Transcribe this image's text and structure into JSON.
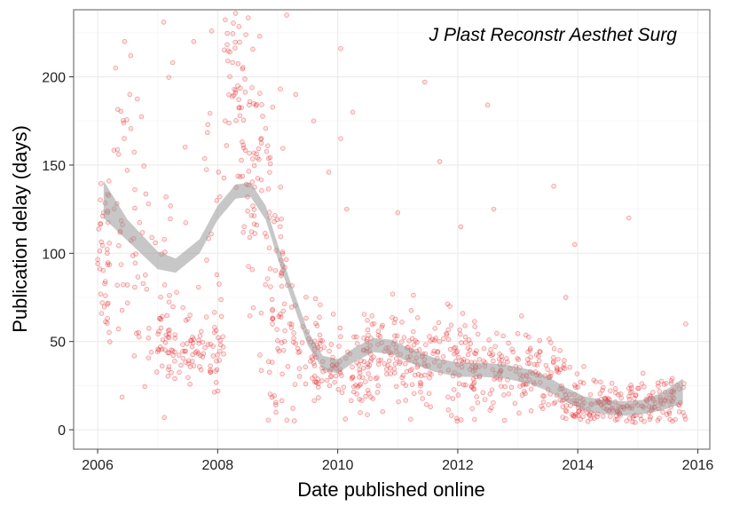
{
  "chart_data": {
    "type": "scatter",
    "title": "",
    "annotation": "J Plast Reconstr Aesthet Surg",
    "xlabel": "Date published online",
    "ylabel": "Publication delay (days)",
    "xlim": [
      2005.6,
      2016.2
    ],
    "ylim": [
      -11,
      238
    ],
    "x_ticks": [
      2006,
      2008,
      2010,
      2012,
      2014,
      2016
    ],
    "x_tick_labels": [
      "2006",
      "2008",
      "2010",
      "2012",
      "2014",
      "2016"
    ],
    "y_ticks": [
      0,
      50,
      100,
      150,
      200
    ],
    "y_tick_labels": [
      "0",
      "50",
      "100",
      "150",
      "200"
    ],
    "grid": true,
    "point_color": "#e41a1c",
    "smooth_color": "#999999",
    "smooth": [
      {
        "x": 2006.1,
        "y": 130,
        "lo": 120,
        "hi": 141
      },
      {
        "x": 2006.5,
        "y": 113,
        "lo": 107,
        "hi": 119
      },
      {
        "x": 2007.0,
        "y": 96,
        "lo": 91,
        "hi": 101
      },
      {
        "x": 2007.3,
        "y": 93,
        "lo": 89,
        "hi": 97
      },
      {
        "x": 2007.7,
        "y": 104,
        "lo": 100,
        "hi": 108
      },
      {
        "x": 2008.0,
        "y": 123,
        "lo": 119,
        "hi": 127
      },
      {
        "x": 2008.3,
        "y": 135,
        "lo": 131,
        "hi": 139
      },
      {
        "x": 2008.55,
        "y": 136,
        "lo": 132,
        "hi": 140
      },
      {
        "x": 2008.8,
        "y": 123,
        "lo": 119,
        "hi": 127
      },
      {
        "x": 2009.0,
        "y": 101,
        "lo": 97,
        "hi": 105
      },
      {
        "x": 2009.25,
        "y": 76,
        "lo": 72,
        "hi": 80
      },
      {
        "x": 2009.5,
        "y": 52,
        "lo": 48,
        "hi": 56
      },
      {
        "x": 2009.75,
        "y": 38,
        "lo": 34,
        "hi": 42
      },
      {
        "x": 2010.0,
        "y": 36,
        "lo": 32,
        "hi": 40
      },
      {
        "x": 2010.3,
        "y": 43,
        "lo": 39,
        "hi": 47
      },
      {
        "x": 2010.6,
        "y": 48,
        "lo": 44,
        "hi": 52
      },
      {
        "x": 2010.9,
        "y": 47,
        "lo": 43,
        "hi": 51
      },
      {
        "x": 2011.2,
        "y": 42,
        "lo": 38,
        "hi": 46
      },
      {
        "x": 2011.6,
        "y": 37,
        "lo": 33,
        "hi": 41
      },
      {
        "x": 2012.0,
        "y": 34,
        "lo": 30,
        "hi": 38
      },
      {
        "x": 2012.4,
        "y": 34,
        "lo": 30,
        "hi": 38
      },
      {
        "x": 2012.8,
        "y": 33,
        "lo": 29,
        "hi": 37
      },
      {
        "x": 2013.2,
        "y": 30,
        "lo": 26,
        "hi": 34
      },
      {
        "x": 2013.5,
        "y": 26,
        "lo": 22,
        "hi": 30
      },
      {
        "x": 2013.8,
        "y": 20,
        "lo": 16,
        "hi": 24
      },
      {
        "x": 2014.1,
        "y": 15,
        "lo": 11,
        "hi": 19
      },
      {
        "x": 2014.4,
        "y": 13,
        "lo": 9,
        "hi": 17
      },
      {
        "x": 2014.8,
        "y": 12,
        "lo": 8,
        "hi": 16
      },
      {
        "x": 2015.1,
        "y": 13,
        "lo": 9,
        "hi": 17
      },
      {
        "x": 2015.4,
        "y": 16,
        "lo": 11,
        "hi": 21
      },
      {
        "x": 2015.75,
        "y": 22,
        "lo": 15,
        "hi": 29
      }
    ],
    "clusters": [
      {
        "x0": 2006.0,
        "x1": 2006.2,
        "yc": 105,
        "ys": 28,
        "n": 40
      },
      {
        "x0": 2006.2,
        "x1": 2006.8,
        "yc": 115,
        "ys": 40,
        "n": 50
      },
      {
        "x0": 2006.8,
        "x1": 2007.2,
        "yc": 70,
        "ys": 30,
        "n": 25
      },
      {
        "x0": 2007.0,
        "x1": 2007.6,
        "yc": 48,
        "ys": 10,
        "n": 45
      },
      {
        "x0": 2007.5,
        "x1": 2008.1,
        "yc": 45,
        "ys": 10,
        "n": 50
      },
      {
        "x0": 2007.1,
        "x1": 2008.1,
        "yc": 125,
        "ys": 50,
        "n": 30
      },
      {
        "x0": 2008.1,
        "x1": 2008.45,
        "yc": 195,
        "ys": 25,
        "n": 40
      },
      {
        "x0": 2008.35,
        "x1": 2008.75,
        "yc": 150,
        "ys": 40,
        "n": 60
      },
      {
        "x0": 2008.7,
        "x1": 2009.1,
        "yc": 100,
        "ys": 40,
        "n": 50
      },
      {
        "x0": 2008.9,
        "x1": 2009.3,
        "yc": 55,
        "ys": 20,
        "n": 40
      },
      {
        "x0": 2009.3,
        "x1": 2009.7,
        "yc": 48,
        "ys": 15,
        "n": 30
      },
      {
        "x0": 2009.6,
        "x1": 2010.6,
        "yc": 35,
        "ys": 12,
        "n": 100
      },
      {
        "x0": 2010.4,
        "x1": 2011.4,
        "yc": 42,
        "ys": 14,
        "n": 100
      },
      {
        "x0": 2011.3,
        "x1": 2012.3,
        "yc": 35,
        "ys": 13,
        "n": 100
      },
      {
        "x0": 2012.2,
        "x1": 2013.2,
        "yc": 33,
        "ys": 13,
        "n": 100
      },
      {
        "x0": 2013.2,
        "x1": 2013.8,
        "yc": 30,
        "ys": 12,
        "n": 60
      },
      {
        "x0": 2013.7,
        "x1": 2014.3,
        "yc": 17,
        "ys": 8,
        "n": 60
      },
      {
        "x0": 2014.3,
        "x1": 2015.0,
        "yc": 13,
        "ys": 6,
        "n": 80
      },
      {
        "x0": 2015.0,
        "x1": 2015.8,
        "yc": 15,
        "ys": 8,
        "n": 80
      }
    ],
    "outliers": [
      {
        "x": 2006.3,
        "y": 205
      },
      {
        "x": 2006.45,
        "y": 220
      },
      {
        "x": 2006.55,
        "y": 212
      },
      {
        "x": 2007.1,
        "y": 231
      },
      {
        "x": 2007.25,
        "y": 208
      },
      {
        "x": 2007.6,
        "y": 220
      },
      {
        "x": 2007.9,
        "y": 226
      },
      {
        "x": 2008.3,
        "y": 236
      },
      {
        "x": 2008.7,
        "y": 223
      },
      {
        "x": 2009.15,
        "y": 235
      },
      {
        "x": 2009.3,
        "y": 190
      },
      {
        "x": 2009.6,
        "y": 175
      },
      {
        "x": 2010.05,
        "y": 216
      },
      {
        "x": 2010.25,
        "y": 180
      },
      {
        "x": 2010.05,
        "y": 165
      },
      {
        "x": 2011.45,
        "y": 197
      },
      {
        "x": 2011.7,
        "y": 152
      },
      {
        "x": 2012.5,
        "y": 184
      },
      {
        "x": 2013.6,
        "y": 138
      },
      {
        "x": 2013.95,
        "y": 105
      },
      {
        "x": 2014.85,
        "y": 120
      },
      {
        "x": 2009.85,
        "y": 146
      },
      {
        "x": 2010.15,
        "y": 125
      },
      {
        "x": 2011.0,
        "y": 123
      },
      {
        "x": 2012.05,
        "y": 115
      },
      {
        "x": 2012.6,
        "y": 125
      },
      {
        "x": 2013.8,
        "y": 75
      },
      {
        "x": 2015.8,
        "y": 60
      }
    ]
  }
}
